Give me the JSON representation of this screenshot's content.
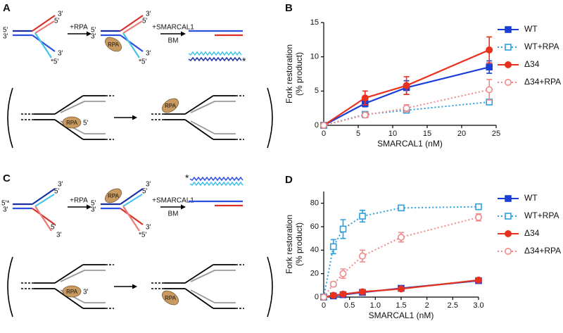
{
  "panel_a": {
    "label": "A",
    "fork1": {
      "top": [
        "3'",
        "5'"
      ],
      "stem": [
        "5'",
        "3'"
      ],
      "bottom": [
        "3'",
        "*5'"
      ]
    },
    "step1": "+RPA",
    "fork2": {
      "top": [
        "3'",
        "5'"
      ],
      "stem": [
        "5'",
        "3'"
      ],
      "bottom": [
        "3'",
        "*5'"
      ],
      "protein": "RPA"
    },
    "step2": [
      "+SMARCAL1",
      "BM"
    ],
    "product_mark": "*",
    "inset": {
      "protein1": "RPA",
      "end": "5'",
      "protein2": "RPA"
    }
  },
  "panel_c": {
    "label": "C",
    "fork1": {
      "top": [
        "3'",
        "5'"
      ],
      "stem": [
        "5'*",
        "3'"
      ],
      "bottom": [
        "5'",
        "3'"
      ]
    },
    "step1": "+RPA",
    "fork2": {
      "top": [
        "3'",
        "5'"
      ],
      "stem": [
        "5'",
        "3'"
      ],
      "bottom": [
        "3'",
        "*5'"
      ],
      "protein": "RPA"
    },
    "step2": [
      "+SMARCAL1",
      "BM"
    ],
    "product_mark": "*",
    "inset": {
      "protein1": "RPA",
      "end": "3'",
      "protein2": "RPA"
    }
  },
  "chart_data": [
    {
      "type": "line",
      "panel": "B",
      "xlabel": "SMARCAL1 (nM)",
      "ylabel": [
        "Fork restoration",
        "(% product)"
      ],
      "x": [
        0,
        6,
        12,
        24
      ],
      "xlim": [
        0,
        25
      ],
      "xticks": [
        0,
        5,
        10,
        15,
        20,
        25
      ],
      "ylim": [
        0,
        15
      ],
      "yticks": [
        0,
        5,
        10,
        15
      ],
      "grid": false,
      "legend": "right",
      "series": [
        {
          "name": "WT",
          "color": "#1a3fd6",
          "marker": "square",
          "dashed": false,
          "values": [
            0,
            3.2,
            5.5,
            8.5
          ],
          "errors": [
            null,
            0.5,
            1.0,
            0.9
          ]
        },
        {
          "name": "WT+RPA",
          "color": "#2b9fe0",
          "marker": "square-open",
          "dashed": true,
          "values": [
            0,
            1.6,
            2.2,
            3.4
          ],
          "errors": [
            null,
            0.3,
            0.3,
            0.3
          ]
        },
        {
          "name": "Δ34",
          "color": "#e8321e",
          "marker": "circle",
          "dashed": false,
          "values": [
            0,
            4.0,
            5.8,
            11.0
          ],
          "errors": [
            null,
            1.0,
            1.3,
            1.9
          ]
        },
        {
          "name": "Δ34+RPA",
          "color": "#f08a8a",
          "marker": "circle-open",
          "dashed": true,
          "values": [
            0,
            1.5,
            2.5,
            5.2
          ],
          "errors": [
            null,
            0.4,
            0.5,
            1.5
          ]
        }
      ]
    },
    {
      "type": "line",
      "panel": "D",
      "xlabel": "SMARCAL1 (nM)",
      "ylabel": [
        "Fork restoration",
        "(% product)"
      ],
      "x": [
        0,
        0.1875,
        0.375,
        0.75,
        1.5,
        3
      ],
      "xlim": [
        0,
        3
      ],
      "xticks": [
        0,
        0.5,
        {
          "value": 1,
          "label": "1.0"
        },
        1.5,
        2,
        2.5,
        {
          "value": 3,
          "label": "3.0"
        }
      ],
      "ylim": [
        0,
        90
      ],
      "yticks": [
        0,
        20,
        40,
        60,
        80
      ],
      "grid": false,
      "legend": "right",
      "series": [
        {
          "name": "WT",
          "color": "#1a3fd6",
          "marker": "square",
          "dashed": false,
          "values": [
            0,
            1,
            2,
            4,
            7.5,
            14
          ],
          "errors": [
            null,
            null,
            null,
            null,
            1,
            1
          ]
        },
        {
          "name": "WT+RPA",
          "color": "#2b9fe0",
          "marker": "square-open",
          "dashed": true,
          "values": [
            0,
            43,
            58,
            69,
            76,
            77
          ],
          "errors": [
            null,
            6,
            8,
            5,
            2,
            2
          ]
        },
        {
          "name": "Δ34",
          "color": "#e8321e",
          "marker": "circle",
          "dashed": false,
          "values": [
            0,
            1.5,
            2.5,
            4.5,
            7,
            14.5
          ],
          "errors": [
            null,
            null,
            null,
            1,
            1,
            1
          ]
        },
        {
          "name": "Δ34+RPA",
          "color": "#f08a8a",
          "marker": "circle-open",
          "dashed": true,
          "values": [
            0,
            11,
            20,
            35,
            51,
            68
          ],
          "errors": [
            null,
            2,
            4,
            5,
            4,
            3
          ]
        }
      ]
    }
  ]
}
